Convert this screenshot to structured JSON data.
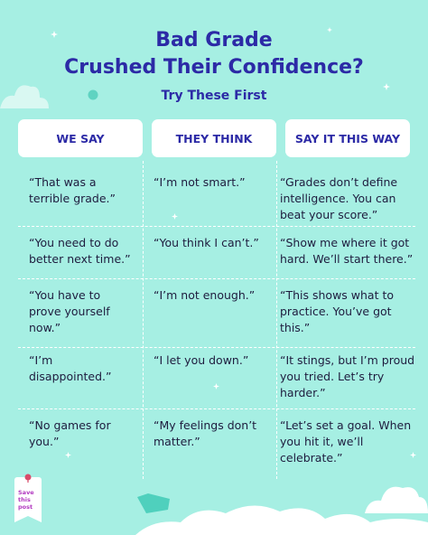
{
  "title_line1": "Bad Grade",
  "title_line2": "Crushed Their Confidence?",
  "subtitle": "Try These First",
  "columns": [
    "WE SAY",
    "THEY THINK",
    "SAY IT THIS WAY"
  ],
  "rows": [
    [
      "“That was a terrible grade.”",
      "“I’m not smart.”",
      "“Grades don’t define intelligence. You can beat your score.”"
    ],
    [
      "“You need to do better next time.”",
      "“You think I can’t.”",
      "“Show me where it got hard. We’ll start there.”"
    ],
    [
      "“You have to prove yourself now.”",
      "“I’m not enough.”",
      "“This shows what to practice. You’ve got this.”"
    ],
    [
      "“I’m disappointed.”",
      "“I let you down.”",
      "“It stings, but I’m proud you tried. Let’s try harder.”"
    ],
    [
      "“No games for you.”",
      "“My feelings don’t matter.”",
      "“Let’s set a goal. When you hit it, we’ll celebrate.”"
    ]
  ],
  "save_badge": "Save this post",
  "colors": {
    "background": "#a6efe3",
    "title": "#2c2aa6",
    "header_bg": "#ffffff",
    "body_text": "#1e1c3e",
    "save_text": "#b23ac0"
  }
}
